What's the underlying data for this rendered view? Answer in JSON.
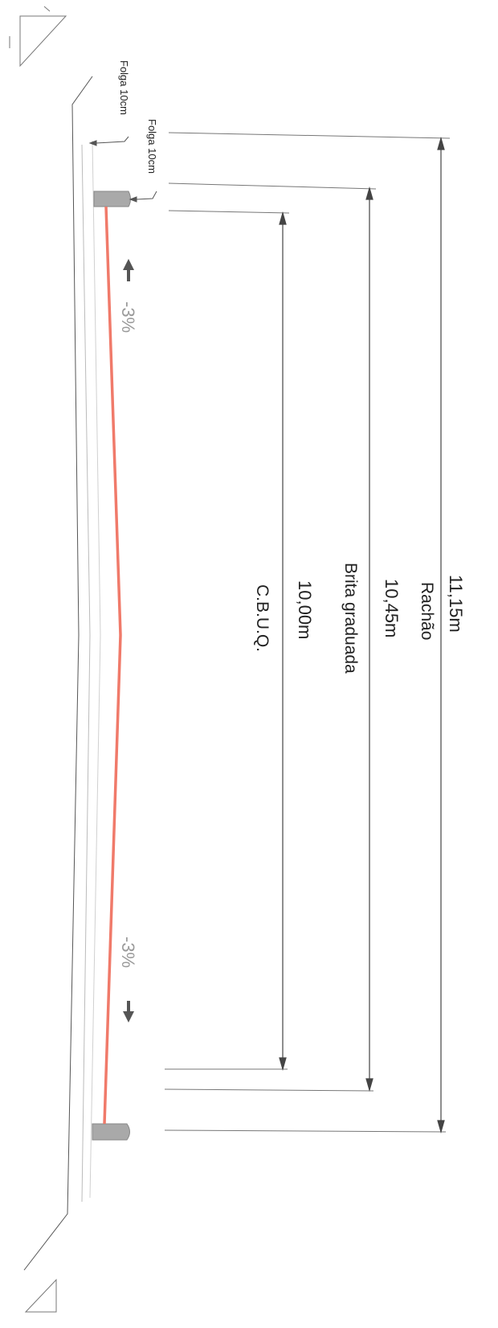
{
  "dimensions": {
    "total": {
      "value": "11,15m",
      "layer": "Rachão"
    },
    "base": {
      "value": "10,45m",
      "layer": "Brita graduada"
    },
    "surface": {
      "value": "10,00m",
      "layer": "C.B.U.Q."
    }
  },
  "clearances": {
    "outer": "Folga 10cm",
    "inner": "Folga 10cm"
  },
  "slopes": {
    "top": "-3%",
    "bottom": "-3%"
  },
  "colors": {
    "surface_line": "#f07a6a",
    "curb": "#a9a9a9",
    "dimension_line": "#444444"
  },
  "icons": {
    "slope_arrow": "arrow-icon",
    "level_marker": "triangle-marker-icon"
  }
}
